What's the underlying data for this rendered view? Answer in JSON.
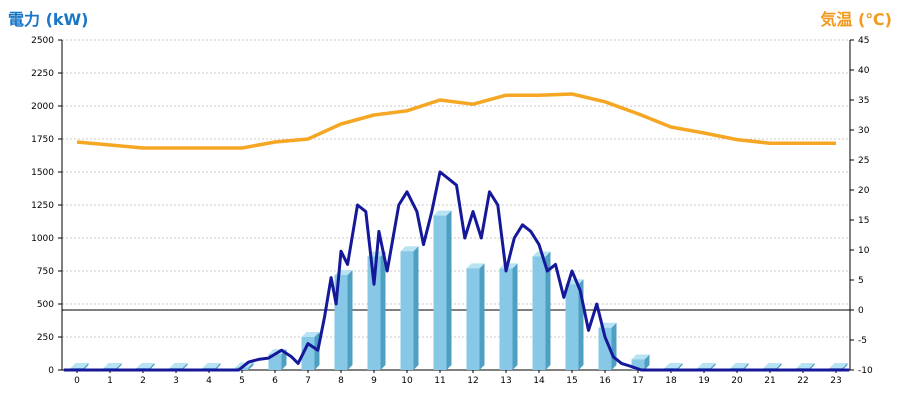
{
  "header": {
    "left_unit": "電力 (kW)",
    "right_unit": "気温 (℃)"
  },
  "colors": {
    "bar_front": "#86c8e6",
    "bar_side": "#4f9fc2",
    "bar_top": "#b8e3f5",
    "power_line": "#16189a",
    "temp_line": "#f5a623",
    "grid": "#c8c8c8",
    "axis": "#000000",
    "left_title": "#1a76c7",
    "right_title": "#f29a1e"
  },
  "chart_data": {
    "type": "bar+line",
    "x_categories": [
      "0",
      "1",
      "2",
      "3",
      "4",
      "5",
      "6",
      "7",
      "8",
      "9",
      "10",
      "11",
      "12",
      "13",
      "14",
      "15",
      "16",
      "17",
      "18",
      "19",
      "20",
      "21",
      "22",
      "23"
    ],
    "left_axis": {
      "label": "電力 (kW)",
      "min": 0,
      "max": 2500,
      "ticks": [
        0,
        250,
        500,
        750,
        1000,
        1250,
        1500,
        1750,
        2000,
        2250,
        2500
      ]
    },
    "right_axis": {
      "label": "気温 (℃)",
      "min": -10,
      "max": 45,
      "ticks": [
        -10,
        -5,
        0,
        5,
        10,
        15,
        20,
        25,
        30,
        35,
        40,
        45
      ]
    },
    "grid": true,
    "bars": {
      "name": "hourly power",
      "values": [
        10,
        10,
        10,
        10,
        10,
        20,
        120,
        250,
        720,
        860,
        900,
        1170,
        770,
        770,
        860,
        650,
        320,
        80,
        10,
        10,
        10,
        10,
        10,
        10
      ]
    },
    "power_line": {
      "points": [
        [
          -0.4,
          0
        ],
        [
          4.9,
          0
        ],
        [
          5.2,
          60
        ],
        [
          5.5,
          80
        ],
        [
          5.8,
          90
        ],
        [
          6.2,
          150
        ],
        [
          6.5,
          100
        ],
        [
          6.7,
          50
        ],
        [
          7.0,
          200
        ],
        [
          7.3,
          150
        ],
        [
          7.5,
          400
        ],
        [
          7.7,
          700
        ],
        [
          7.85,
          500
        ],
        [
          8.0,
          900
        ],
        [
          8.2,
          800
        ],
        [
          8.5,
          1250
        ],
        [
          8.75,
          1200
        ],
        [
          9.0,
          650
        ],
        [
          9.15,
          1050
        ],
        [
          9.4,
          750
        ],
        [
          9.75,
          1250
        ],
        [
          10.0,
          1350
        ],
        [
          10.3,
          1200
        ],
        [
          10.5,
          950
        ],
        [
          10.75,
          1200
        ],
        [
          11.0,
          1500
        ],
        [
          11.25,
          1450
        ],
        [
          11.5,
          1400
        ],
        [
          11.75,
          1000
        ],
        [
          12.0,
          1200
        ],
        [
          12.25,
          1000
        ],
        [
          12.5,
          1350
        ],
        [
          12.75,
          1250
        ],
        [
          13.0,
          750
        ],
        [
          13.25,
          1000
        ],
        [
          13.5,
          1100
        ],
        [
          13.75,
          1050
        ],
        [
          14.0,
          950
        ],
        [
          14.25,
          750
        ],
        [
          14.5,
          800
        ],
        [
          14.75,
          550
        ],
        [
          15.0,
          750
        ],
        [
          15.25,
          600
        ],
        [
          15.5,
          300
        ],
        [
          15.75,
          500
        ],
        [
          16.0,
          250
        ],
        [
          16.25,
          100
        ],
        [
          16.5,
          50
        ],
        [
          16.75,
          30
        ],
        [
          17.1,
          0
        ],
        [
          23.4,
          0
        ]
      ]
    },
    "temperature": {
      "points": [
        [
          0,
          28
        ],
        [
          1,
          27.5
        ],
        [
          2,
          27
        ],
        [
          3,
          27
        ],
        [
          4,
          27
        ],
        [
          5,
          27
        ],
        [
          6,
          28
        ],
        [
          7,
          28.5
        ],
        [
          8,
          31
        ],
        [
          9,
          32.5
        ],
        [
          10,
          33.2
        ],
        [
          11,
          35
        ],
        [
          12,
          34.3
        ],
        [
          13,
          35.8
        ],
        [
          14,
          35.8
        ],
        [
          15,
          36
        ],
        [
          16,
          34.7
        ],
        [
          17,
          32.7
        ],
        [
          18,
          30.5
        ],
        [
          19,
          29.5
        ],
        [
          20,
          28.4
        ],
        [
          21,
          27.8
        ],
        [
          22,
          27.8
        ],
        [
          23,
          27.8
        ]
      ]
    }
  }
}
